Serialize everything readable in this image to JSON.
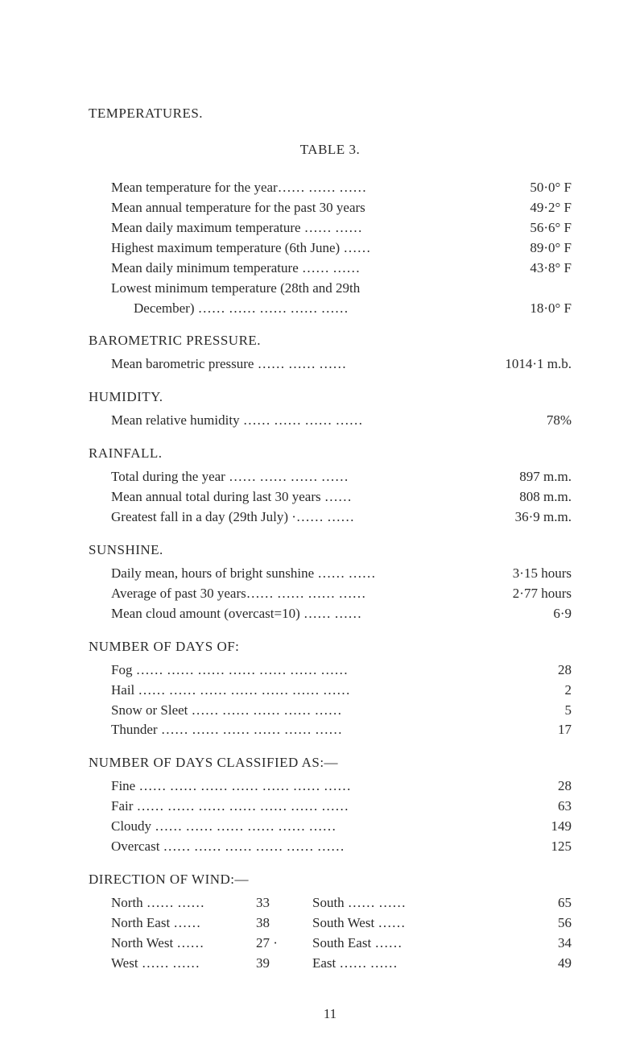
{
  "headings": {
    "temperatures": "TEMPERATURES.",
    "table": "TABLE 3.",
    "barometric": "BAROMETRIC PRESSURE.",
    "humidity": "HUMIDITY.",
    "rainfall": "RAINFALL.",
    "sunshine": "SUNSHINE.",
    "numdays_of": "NUMBER OF DAYS OF:",
    "numdays_classified": "NUMBER OF DAYS CLASSIFIED AS:—",
    "direction_wind": "DIRECTION OF WIND:—"
  },
  "temps": {
    "meanYear": {
      "label": "Mean temperature for the year……   ……   ……",
      "val": "50·0° F"
    },
    "meanAnnual30": {
      "label": "Mean annual temperature for the past 30 years",
      "val": "49·2° F"
    },
    "meanDailyMax": {
      "label": "Mean daily maximum temperature   ……   ……",
      "val": "56·6° F"
    },
    "highestMax": {
      "label": "Highest maximum temperature (6th June) ……",
      "val": "89·0° F"
    },
    "meanDailyMin": {
      "label": "Mean daily minimum temperature   ……   ……",
      "val": "43·8° F"
    },
    "lowestMinLine1": "Lowest minimum temperature (28th and 29th",
    "lowestMinLine2": {
      "label": "December)  ……   ……   ……   ……   ……",
      "val": "18·0° F"
    }
  },
  "barometric": {
    "label": "Mean barometric pressure      ……   ……   ……",
    "val": "1014·1 m.b."
  },
  "humidityRow": {
    "label": "Mean relative humidity ……   ……   ……   ……",
    "val": "78%"
  },
  "rainfall": {
    "total": {
      "label": "Total during the year   ……   ……   ……   ……",
      "val": "897 m.m."
    },
    "meanAnnual": {
      "label": "Mean annual total during last 30 years    ……",
      "val": "808 m.m."
    },
    "greatestFall": {
      "label": "Greatest fall in a day (29th July)    ·……   ……",
      "val": "36·9 m.m."
    }
  },
  "sunshine": {
    "dailyMean": {
      "label": "Daily mean, hours of bright sunshine ……   ……",
      "val": "3·15 hours"
    },
    "avg30": {
      "label": "Average of past 30 years……   ……   ……   ……",
      "val": "2·77 hours"
    },
    "meanCloud": {
      "label": "Mean cloud amount (overcast=10)   ……   ……",
      "val": "6·9"
    }
  },
  "daysOf": {
    "fog": {
      "label": "Fog   ……   ……   ……   ……   ……   ……   ……",
      "val": "28"
    },
    "hail": {
      "label": "Hail  ……   ……   ……   ……   ……   ……   ……",
      "val": "2"
    },
    "snow": {
      "label": "Snow or Sleet   ……   ……   ……   ……   ……",
      "val": "5"
    },
    "thunder": {
      "label": "Thunder    ……   ……   ……   ……   ……   ……",
      "val": "17"
    }
  },
  "daysClassified": {
    "fine": {
      "label": "Fine  ……   ……   ……   ……   ……   ……   ……",
      "val": "28"
    },
    "fair": {
      "label": "Fair  ……   ……   ……   ……   ……   ……   ……",
      "val": "63"
    },
    "cloudy": {
      "label": "Cloudy     ……   ……   ……   ……   ……   ……",
      "val": "149"
    },
    "overcast": {
      "label": "Overcast   ……   ……   ……   ……   ……   ……",
      "val": "125"
    }
  },
  "wind": {
    "r1": {
      "l": "North ……   ……",
      "n1": "33",
      "r": "South  ……   ……",
      "n2": "65"
    },
    "r2": {
      "l": "North East  ……",
      "n1": "38",
      "r": "South West  ……",
      "n2": "56"
    },
    "r3": {
      "l": "North West ……",
      "n1": "27  ·",
      "r": "South East  ……",
      "n2": "34"
    },
    "r4": {
      "l": "West  ……   ……",
      "n1": "39",
      "r": "East   ……   ……",
      "n2": "49"
    }
  },
  "pagenum": "11"
}
